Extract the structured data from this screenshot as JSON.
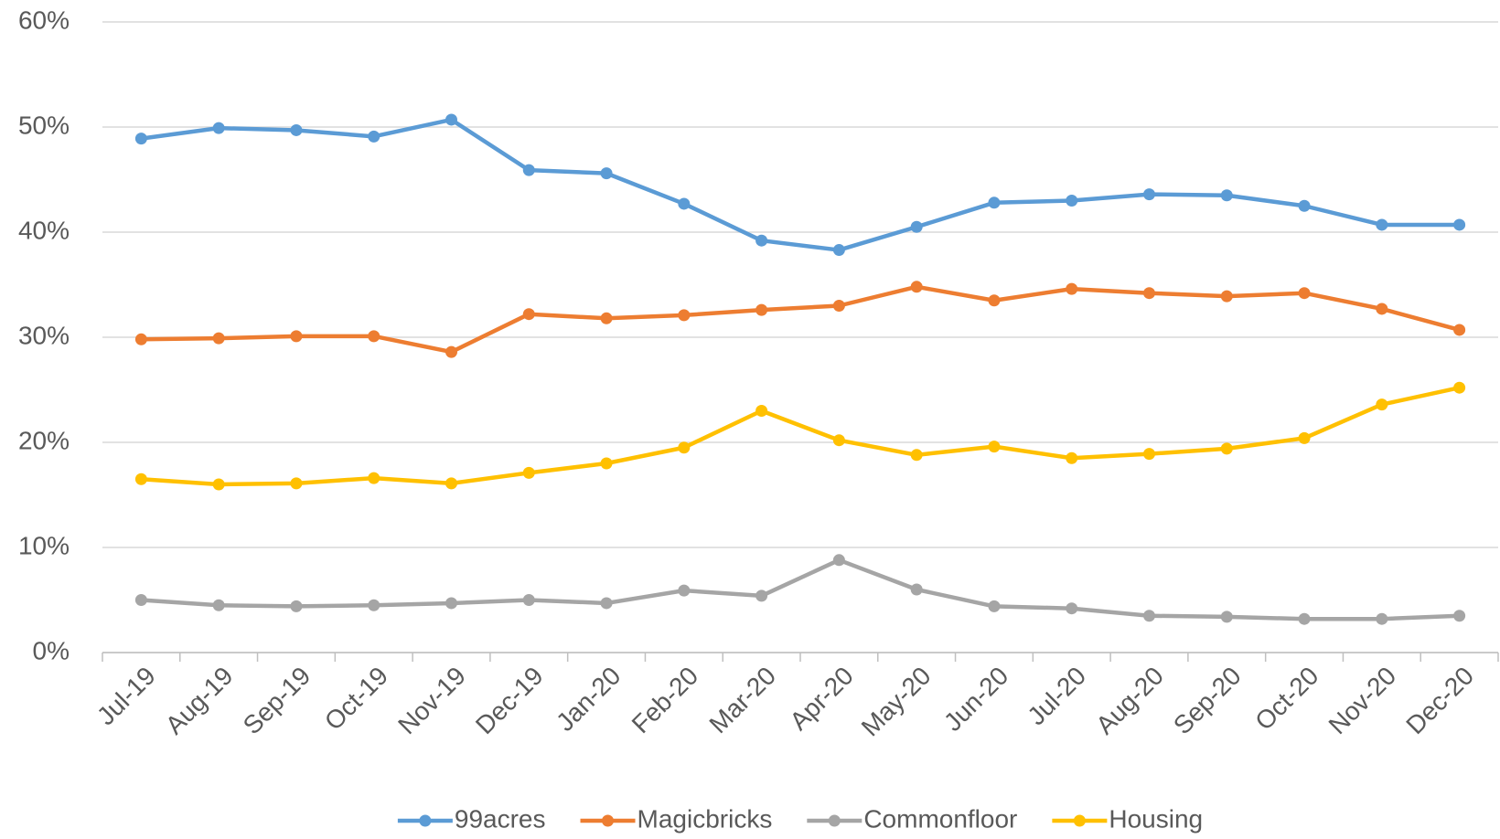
{
  "chart_data": {
    "type": "line",
    "categories": [
      "Jul-19",
      "Aug-19",
      "Sep-19",
      "Oct-19",
      "Nov-19",
      "Dec-19",
      "Jan-20",
      "Feb-20",
      "Mar-20",
      "Apr-20",
      "May-20",
      "Jun-20",
      "Jul-20",
      "Aug-20",
      "Sep-20",
      "Oct-20",
      "Nov-20",
      "Dec-20"
    ],
    "series": [
      {
        "name": "99acres",
        "color": "#5b9bd5",
        "values": [
          48.9,
          49.9,
          49.7,
          49.1,
          50.7,
          45.9,
          45.6,
          42.7,
          39.2,
          38.3,
          40.5,
          42.8,
          43.0,
          43.6,
          43.5,
          42.5,
          40.7,
          40.7
        ]
      },
      {
        "name": "Magicbricks",
        "color": "#ed7d31",
        "values": [
          29.8,
          29.9,
          30.1,
          30.1,
          28.6,
          32.2,
          31.8,
          32.1,
          32.6,
          33.0,
          34.8,
          33.5,
          34.6,
          34.2,
          33.9,
          34.2,
          32.7,
          30.7
        ]
      },
      {
        "name": "Commonfloor",
        "color": "#a5a5a5",
        "values": [
          5.0,
          4.5,
          4.4,
          4.5,
          4.7,
          5.0,
          4.7,
          5.9,
          5.4,
          8.8,
          6.0,
          4.4,
          4.2,
          3.5,
          3.4,
          3.2,
          3.2,
          3.5
        ]
      },
      {
        "name": "Housing",
        "color": "#ffc000",
        "values": [
          16.5,
          16.0,
          16.1,
          16.6,
          16.1,
          17.1,
          18.0,
          19.5,
          23.0,
          20.2,
          18.8,
          19.6,
          18.5,
          18.9,
          19.4,
          20.4,
          23.6,
          25.2
        ]
      }
    ],
    "ylim": [
      0,
      60
    ],
    "yticks": [
      {
        "value": 0,
        "label": "0%"
      },
      {
        "value": 10,
        "label": "10%"
      },
      {
        "value": 20,
        "label": "20%"
      },
      {
        "value": 30,
        "label": "30%"
      },
      {
        "value": 40,
        "label": "40%"
      },
      {
        "value": 50,
        "label": "50%"
      },
      {
        "value": 60,
        "label": "60%"
      }
    ],
    "grid": true,
    "legend": "bottom"
  }
}
